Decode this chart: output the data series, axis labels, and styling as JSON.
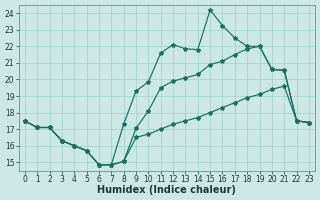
{
  "xlabel": "Humidex (Indice chaleur)",
  "bg_color": "#cce8e4",
  "grid_color": "#a8d4ce",
  "line_color": "#1a6e60",
  "xlim": [
    -0.5,
    23.5
  ],
  "ylim": [
    14.5,
    24.5
  ],
  "xticks": [
    0,
    1,
    2,
    3,
    4,
    5,
    6,
    7,
    8,
    9,
    10,
    11,
    12,
    13,
    14,
    15,
    16,
    17,
    18,
    19,
    20,
    21,
    22,
    23
  ],
  "yticks": [
    15,
    16,
    17,
    18,
    19,
    20,
    21,
    22,
    23,
    24
  ],
  "curve1_x": [
    0,
    1,
    2,
    3,
    4,
    5,
    6,
    7,
    8,
    9,
    10,
    11,
    12,
    13,
    14,
    15,
    16,
    17,
    18,
    19,
    20,
    21,
    22,
    23
  ],
  "curve1_y": [
    17.5,
    17.1,
    17.1,
    16.3,
    16.0,
    15.7,
    14.85,
    14.85,
    17.3,
    19.3,
    19.85,
    21.6,
    22.1,
    21.85,
    21.8,
    24.2,
    23.25,
    22.5,
    22.0,
    22.0,
    20.6,
    20.55,
    17.5,
    17.4
  ],
  "curve2_x": [
    0,
    1,
    2,
    3,
    4,
    5,
    6,
    7,
    8,
    9,
    10,
    11,
    12,
    13,
    14,
    15,
    16,
    17,
    18,
    19,
    20,
    21,
    22,
    23
  ],
  "curve2_y": [
    17.5,
    17.1,
    17.1,
    16.3,
    16.0,
    15.7,
    14.85,
    14.85,
    15.05,
    17.05,
    18.1,
    19.5,
    19.9,
    20.1,
    20.3,
    20.9,
    21.1,
    21.5,
    21.85,
    22.0,
    20.6,
    20.55,
    17.5,
    17.4
  ],
  "curve3_x": [
    0,
    1,
    2,
    3,
    4,
    5,
    6,
    7,
    8,
    9,
    10,
    11,
    12,
    13,
    14,
    15,
    16,
    17,
    18,
    19,
    20,
    21,
    22,
    23
  ],
  "curve3_y": [
    17.5,
    17.1,
    17.1,
    16.3,
    16.0,
    15.7,
    14.85,
    14.85,
    15.05,
    16.5,
    16.7,
    17.0,
    17.3,
    17.5,
    17.7,
    18.0,
    18.3,
    18.6,
    18.9,
    19.1,
    19.4,
    19.6,
    17.5,
    17.4
  ]
}
